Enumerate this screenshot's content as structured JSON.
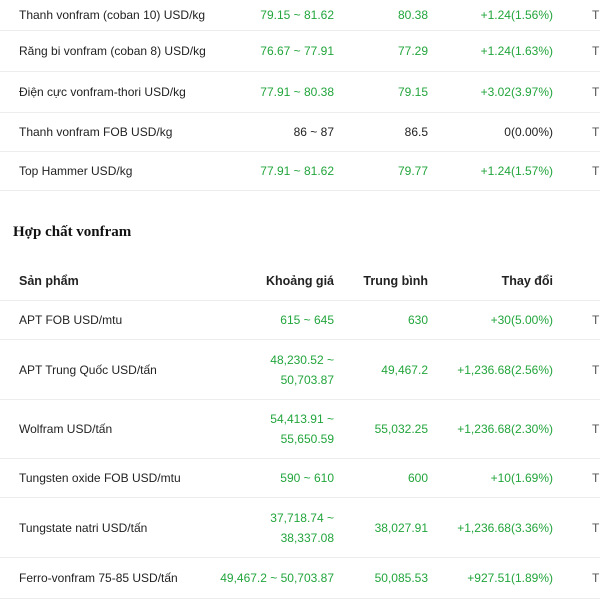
{
  "top_rows": [
    {
      "name": "Thanh vonfram (coban 10) USD/kg",
      "range": "79.15 ~ 81.62",
      "avg": "80.38",
      "change": "+1.24(1.56%)",
      "cut": "T"
    },
    {
      "name": "Răng bi vonfram (coban 8) USD/kg",
      "range": "76.67 ~ 77.91",
      "avg": "77.29",
      "change": "+1.24(1.63%)",
      "cut": "T"
    },
    {
      "name": "Điện cực vonfram-thori USD/kg",
      "range": "77.91 ~ 80.38",
      "avg": "79.15",
      "change": "+3.02(3.97%)",
      "cut": "T"
    },
    {
      "name": "Thanh vonfram FOB USD/kg",
      "range": "86 ~ 87",
      "avg": "86.5",
      "change": "0(0.00%)",
      "cut": "T"
    },
    {
      "name": "Top Hammer USD/kg",
      "range": "77.91 ~ 81.62",
      "avg": "79.77",
      "change": "+1.24(1.57%)",
      "cut": "T"
    }
  ],
  "section_title": "Hợp chất vonfram",
  "table_header": {
    "product": "Sản phẩm",
    "range": "Khoảng giá",
    "avg": "Trung bình",
    "change": "Thay đổi"
  },
  "compound_rows": [
    {
      "name": "APT FOB USD/mtu",
      "range": "615 ~ 645",
      "avg": "630",
      "change": "+30(5.00%)",
      "cut": "T"
    },
    {
      "name": "APT Trung Quốc USD/tấn",
      "range_line1": "48,230.52 ~",
      "range_line2": "50,703.87",
      "avg": "49,467.2",
      "change": "+1,236.68(2.56%)",
      "cut": "T"
    },
    {
      "name": "Wolfram USD/tấn",
      "range_line1": "54,413.91 ~",
      "range_line2": "55,650.59",
      "avg": "55,032.25",
      "change": "+1,236.68(2.30%)",
      "cut": "T"
    },
    {
      "name": "Tungsten oxide FOB USD/mtu",
      "range": "590 ~ 610",
      "avg": "600",
      "change": "+10(1.69%)",
      "cut": "T"
    },
    {
      "name": "Tungstate natri USD/tấn",
      "range_line1": "37,718.74 ~",
      "range_line2": "38,337.08",
      "avg": "38,027.91",
      "change": "+1,236.68(3.36%)",
      "cut": "T"
    },
    {
      "name": "Ferro-vonfram 75-85 USD/tấn",
      "range": "49,467.2 ~ 50,703.87",
      "avg": "50,085.53",
      "change": "+927.51(1.89%)",
      "cut": "T"
    }
  ],
  "colors": {
    "up": "#22a53c",
    "neutral": "#222222",
    "divider": "#ececec"
  }
}
